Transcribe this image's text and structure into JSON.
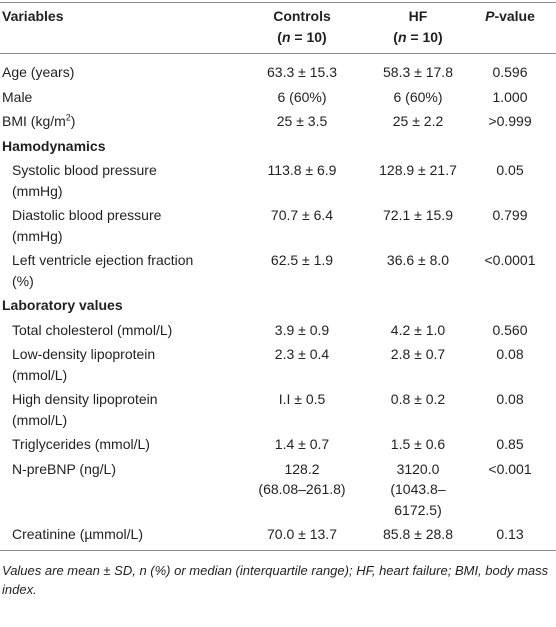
{
  "table": {
    "header": [
      "Variables",
      {
        "lines": [
          "Controls",
          [
            {
              "text": "(",
              "style": "bold"
            },
            {
              "text": "n",
              "style": "italic"
            },
            {
              "text": " = 10)",
              "style": "bold"
            }
          ]
        ]
      },
      {
        "lines": [
          "HF",
          [
            {
              "text": "(",
              "style": "bold"
            },
            {
              "text": "n",
              "style": "italic"
            },
            {
              "text": " = 10)",
              "style": "bold"
            }
          ]
        ]
      },
      [
        {
          "text": "P",
          "style": "italic"
        },
        {
          "text": "-value",
          "style": "bold"
        }
      ]
    ],
    "rows": [
      {
        "cells": [
          "Age (years)",
          "63.3 ± 15.3",
          "58.3 ± 17.8",
          "0.596"
        ]
      },
      {
        "cells": [
          "Male",
          "6 (60%)",
          "6 (60%)",
          "1.000"
        ]
      },
      {
        "cells": [
          [
            {
              "text": "BMI (kg/m",
              "style": "normal"
            },
            {
              "text": "2",
              "style": "sup"
            },
            {
              "text": ")",
              "style": "normal"
            }
          ],
          "25 ± 3.5",
          "25 ± 2.2",
          ">0.999"
        ]
      },
      {
        "section": "Hamodynamics"
      },
      {
        "indent": true,
        "cells": [
          {
            "lines": [
              "Systolic blood pressure",
              "(mmHg)"
            ]
          },
          "113.8 ± 6.9",
          "128.9 ± 21.7",
          "0.05"
        ]
      },
      {
        "indent": true,
        "cells": [
          {
            "lines": [
              "Diastolic blood pressure",
              "(mmHg)"
            ]
          },
          "70.7 ± 6.4",
          "72.1 ± 15.9",
          "0.799"
        ]
      },
      {
        "indent": true,
        "cells": [
          {
            "lines": [
              "Left ventricle ejection fraction",
              "(%)"
            ]
          },
          "62.5 ± 1.9",
          "36.6 ± 8.0",
          "<0.0001"
        ]
      },
      {
        "section": "Laboratory values"
      },
      {
        "indent": true,
        "cells": [
          "Total cholesterol (mmol/L)",
          "3.9 ± 0.9",
          "4.2 ± 1.0",
          "0.560"
        ]
      },
      {
        "indent": true,
        "cells": [
          {
            "lines": [
              "Low-density lipoprotein",
              "(mmol/L)"
            ]
          },
          "2.3 ± 0.4",
          "2.8 ± 0.7",
          "0.08"
        ]
      },
      {
        "indent": true,
        "cells": [
          {
            "lines": [
              "High density lipoprotein",
              "(mmol/L)"
            ]
          },
          "I.I ± 0.5",
          "0.8 ± 0.2",
          "0.08"
        ]
      },
      {
        "indent": true,
        "cells": [
          "Triglycerides (mmol/L)",
          "1.4 ± 0.7",
          "1.5 ± 0.6",
          "0.85"
        ]
      },
      {
        "indent": true,
        "cells": [
          "N-preBNP (ng/L)",
          {
            "lines": [
              "128.2",
              "(68.08–261.8)"
            ]
          },
          {
            "lines": [
              "3120.0",
              "(1043.8–6172.5)"
            ]
          },
          "<0.001"
        ]
      },
      {
        "indent": true,
        "cells": [
          "Creatinine (µmmol/L)",
          "70.0 ± 13.7",
          "85.8 ± 28.8",
          "0.13"
        ]
      }
    ],
    "footnote": "Values are mean ± SD, n (%) or median (interquartile range); HF, heart failure; BMI, body mass index."
  }
}
